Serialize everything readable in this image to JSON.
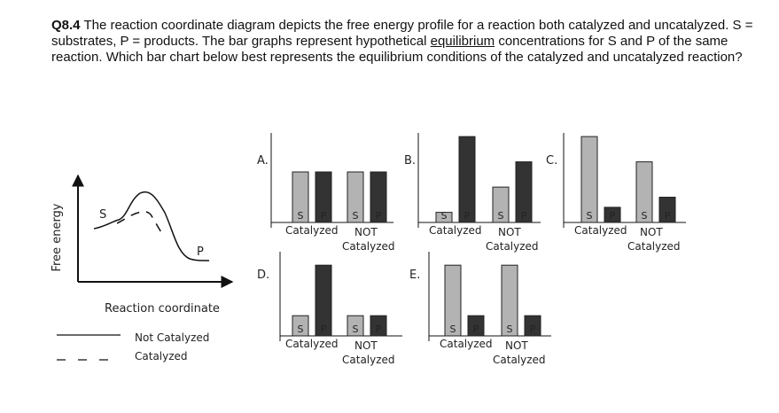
{
  "question": {
    "number": "Q8.4",
    "text_before": "The reaction coordinate diagram depicts the free energy profile for a reaction both catalyzed and uncatalyzed. S = substrates, P = products. The bar graphs represent hypothetical ",
    "underlined": "equilibrium",
    "text_after": " concentrations for S and P of the same reaction. Which bar chart below best represents the equilibrium conditions of the catalyzed and uncatalyzed reaction?"
  },
  "energy_diagram": {
    "ylabel": "Free energy",
    "xlabel": "Reaction coordinate",
    "label_s": "S",
    "label_p": "P",
    "legend": [
      {
        "label": "Not Catalyzed",
        "style": "solid"
      },
      {
        "label": "Catalyzed",
        "style": "dashed"
      }
    ]
  },
  "bar_labels": {
    "substrate": "S",
    "product": "P"
  },
  "colors": {
    "substrate": "#b3b3b3",
    "product": "#333333"
  },
  "chart_data": [
    {
      "type": "bar",
      "title": "A.",
      "groups": [
        {
          "label": "Catalyzed",
          "values": {
            "S": 1.0,
            "P": 1.0
          }
        },
        {
          "label_lines": [
            "NOT",
            "Catalyzed"
          ],
          "values": {
            "S": 1.0,
            "P": 1.0
          }
        }
      ]
    },
    {
      "type": "bar",
      "title": "B.",
      "groups": [
        {
          "label": "Catalyzed",
          "values": {
            "S": 0.2,
            "P": 1.7
          }
        },
        {
          "label_lines": [
            "NOT",
            "Catalyzed"
          ],
          "values": {
            "S": 0.7,
            "P": 1.2
          }
        }
      ]
    },
    {
      "type": "bar",
      "title": "C.",
      "groups": [
        {
          "label": "Catalyzed",
          "values": {
            "S": 1.7,
            "P": 0.3
          }
        },
        {
          "label_lines": [
            "NOT",
            "Catalyzed"
          ],
          "values": {
            "S": 1.2,
            "P": 0.5
          }
        }
      ]
    },
    {
      "type": "bar",
      "title": "D.",
      "groups": [
        {
          "label": "Catalyzed",
          "values": {
            "S": 0.4,
            "P": 1.4
          }
        },
        {
          "label_lines": [
            "NOT",
            "Catalyzed"
          ],
          "values": {
            "S": 0.4,
            "P": 0.4
          }
        }
      ]
    },
    {
      "type": "bar",
      "title": "E.",
      "groups": [
        {
          "label": "Catalyzed",
          "values": {
            "S": 1.4,
            "P": 0.4
          }
        },
        {
          "label_lines": [
            "NOT",
            "Catalyzed"
          ],
          "values": {
            "S": 1.4,
            "P": 0.4
          }
        }
      ]
    }
  ]
}
